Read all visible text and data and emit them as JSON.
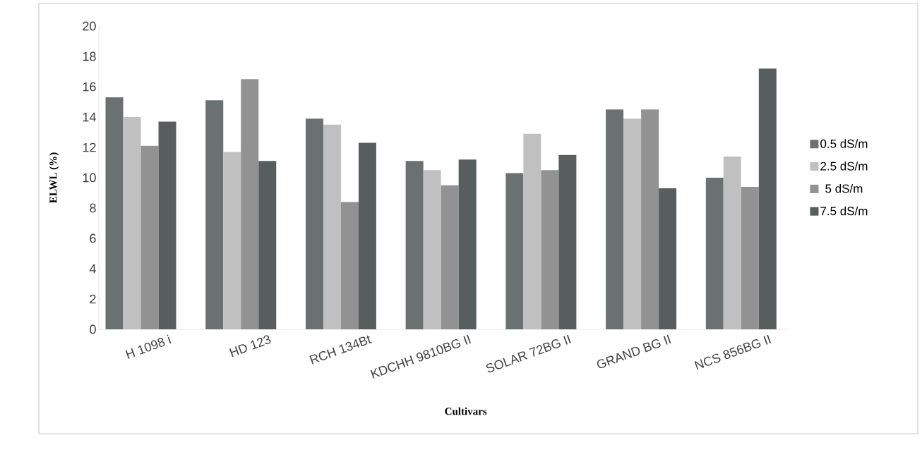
{
  "chart_data": {
    "type": "bar",
    "xlabel": "Cultivars",
    "ylabel": "ELWL (%)",
    "categories": [
      "H 1098 i",
      "HD 123",
      "RCH 134Bt",
      "KDCHH 9810BG II",
      "SOLAR 72BG II",
      "GRAND BG II",
      "NCS 856BG II"
    ],
    "series": [
      {
        "name": "0.5 dS/m",
        "color": "#6b7070",
        "values": [
          15.3,
          15.1,
          13.9,
          11.1,
          10.3,
          14.5,
          10.0
        ]
      },
      {
        "name": "2.5 dS/m",
        "color": "#c0c0c0",
        "values": [
          14.0,
          11.7,
          13.5,
          10.5,
          12.9,
          13.9,
          11.4
        ]
      },
      {
        "name": "5 dS/m",
        "color": "#929292",
        "values": [
          12.1,
          16.5,
          8.4,
          9.5,
          10.5,
          14.5,
          9.4
        ]
      },
      {
        "name": "7.5 dS/m",
        "color": "#585e5e",
        "values": [
          13.7,
          11.1,
          12.3,
          11.2,
          11.5,
          9.3,
          17.2
        ]
      }
    ],
    "ylim": [
      0,
      20
    ],
    "yticks": [
      0,
      2,
      4,
      6,
      8,
      10,
      12,
      14,
      16,
      18,
      20
    ],
    "grid": false,
    "legend": "right"
  }
}
